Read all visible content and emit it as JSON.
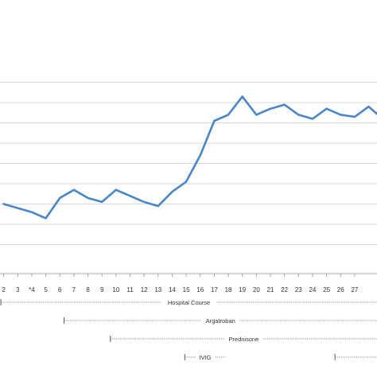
{
  "chart_data": {
    "type": "line",
    "title": "",
    "xlabel": "",
    "ylabel": "",
    "grid": true,
    "legend": "none",
    "line_color": "#4a86c5",
    "categories": [
      "2",
      "3",
      "*4",
      "5",
      "6",
      "7",
      "8",
      "9",
      "10",
      "11",
      "12",
      "13",
      "14",
      "15",
      "16",
      "17",
      "18",
      "19",
      "20",
      "21",
      "22",
      "23",
      "24",
      "25",
      "26",
      "27"
    ],
    "x": [
      1,
      2,
      3,
      4,
      5,
      6,
      7,
      8,
      9,
      10,
      11,
      12,
      13,
      14,
      15,
      16,
      17,
      18,
      19,
      20,
      21,
      22,
      23,
      24,
      25,
      26,
      27,
      28
    ],
    "values": [
      30,
      28,
      26,
      23,
      33,
      37,
      33,
      31,
      37,
      34,
      31,
      29,
      36,
      41,
      54,
      71,
      74,
      83,
      74,
      77,
      79,
      74,
      72,
      77,
      74,
      73,
      78,
      72
    ],
    "ylim": [
      0,
      100
    ],
    "gridlines": [
      10,
      20,
      30,
      40,
      50,
      60,
      70,
      80,
      90
    ],
    "annotations": [
      {
        "label": "Hospital Course",
        "start": 0.8,
        "end": 28
      },
      {
        "label": "Argatroban",
        "start": 5.3,
        "end": 28
      },
      {
        "label": "Prednisone",
        "start": 8.6,
        "end": 28
      },
      {
        "label": "IVIG",
        "start": 13.9,
        "end": 16.8
      },
      {
        "label": "",
        "start": 24.6,
        "end": 28
      }
    ]
  }
}
